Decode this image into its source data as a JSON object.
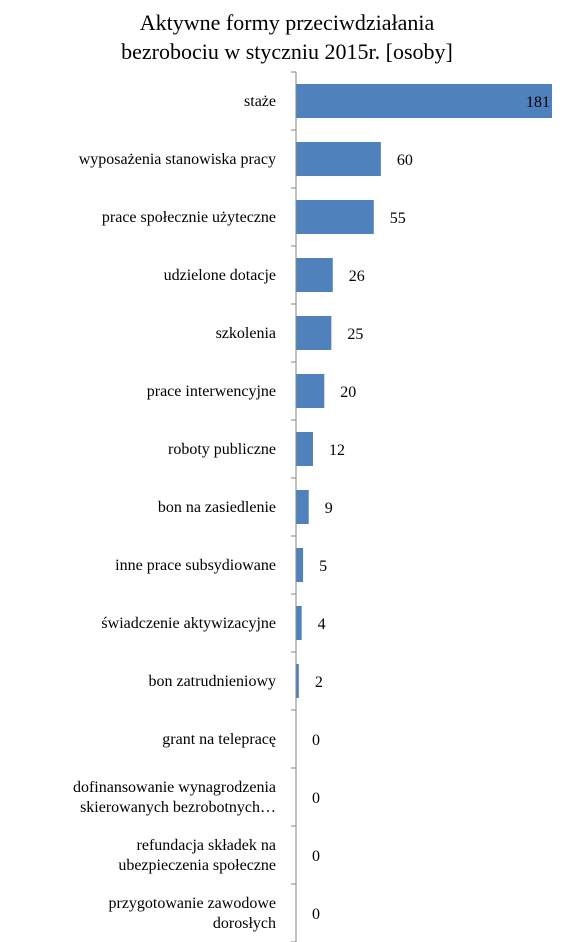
{
  "chart_data": {
    "type": "bar",
    "orientation": "horizontal",
    "title": "Aktywne formy przeciwdziałania bezrobociu w styczniu 2015r. [osoby]",
    "title_lines": [
      "Aktywne formy przeciwdziałania",
      "bezrobociu w styczniu 2015r. [osoby]"
    ],
    "categories": [
      [
        "staże"
      ],
      [
        "wyposażenia stanowiska pracy"
      ],
      [
        "prace społecznie użyteczne"
      ],
      [
        "udzielone dotacje"
      ],
      [
        "szkolenia"
      ],
      [
        "prace interwencyjne"
      ],
      [
        "roboty publiczne"
      ],
      [
        "bon na zasiedlenie"
      ],
      [
        "inne prace subsydiowane"
      ],
      [
        "świadczenie aktywizacyjne"
      ],
      [
        "bon zatrudnieniowy"
      ],
      [
        "grant na telepracę"
      ],
      [
        "dofinansowanie wynagrodzenia",
        "skierowanych bezrobotnych…"
      ],
      [
        "refundacja składek na",
        "ubezpieczenia społeczne"
      ],
      [
        "przygotowanie zawodowe",
        "dorosłych"
      ]
    ],
    "values": [
      181,
      60,
      55,
      26,
      25,
      20,
      12,
      9,
      5,
      4,
      2,
      0,
      0,
      0,
      0
    ],
    "xlim": [
      0,
      181
    ],
    "bar_color": "#4f81bd",
    "axis_color": "#868686",
    "grid": false,
    "legend": "none"
  }
}
